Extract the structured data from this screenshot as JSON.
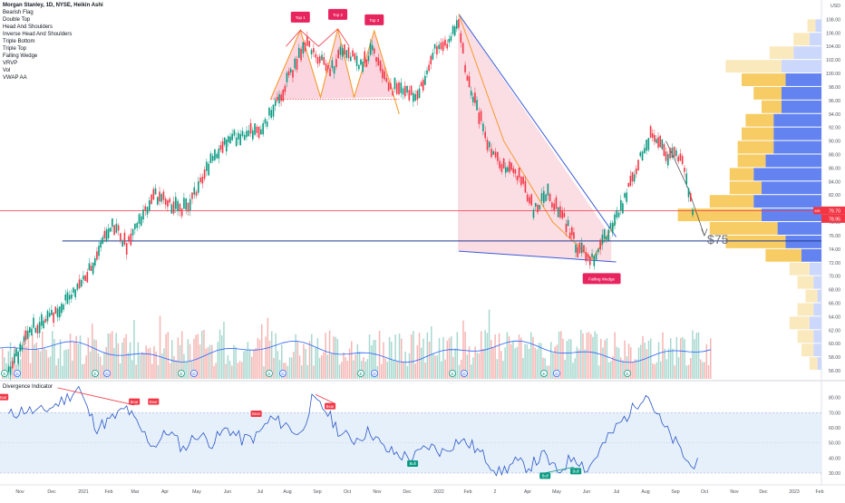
{
  "chart_data": {
    "type": "line",
    "title": "Morgan Stanley, 1D, NYSE, Heikin Ashi",
    "overlays": [
      "Bearish Flag",
      "Double Top",
      "Head And Shoulders",
      "Inverse Head And Shoulders",
      "Triple Bottom",
      "Triple Top",
      "Falling Wedge",
      "VRVP",
      "Vol",
      "VWAP AA"
    ],
    "currency": "USD",
    "price_axis": {
      "ticks": [
        "108.00",
        "106.00",
        "104.00",
        "102.00",
        "100.00",
        "98.00",
        "96.00",
        "94.00",
        "92.00",
        "90.00",
        "88.00",
        "86.00",
        "84.00",
        "82.00",
        "80.00",
        "78.00",
        "76.00",
        "74.00",
        "72.00",
        "70.00",
        "68.00",
        "66.00",
        "64.00",
        "62.00",
        "60.00",
        "58.00",
        "56.00"
      ],
      "range": [
        54.8,
        110.6
      ]
    },
    "time_axis": [
      "Nov",
      "Dec",
      "2021",
      "Feb",
      "Mar",
      "Apr",
      "May",
      "Jun",
      "Jul",
      "Aug",
      "Sep",
      "Oct",
      "Nov",
      "Dec",
      "2022",
      "Feb",
      "2",
      "Apr",
      "May",
      "Jun",
      "Jul",
      "Aug",
      "Sep",
      "Oct",
      "Nov",
      "Dec",
      "2023",
      "Feb"
    ],
    "price_series": {
      "name": "MS",
      "x": [
        "2020-10-20",
        "2020-11-15",
        "2020-12-10",
        "2021-01-10",
        "2021-02-05",
        "2021-02-20",
        "2021-03-05",
        "2021-03-20",
        "2021-04-10",
        "2021-04-25",
        "2021-05-10",
        "2021-05-25",
        "2021-06-10",
        "2021-06-25",
        "2021-07-10",
        "2021-07-25",
        "2021-08-10",
        "2021-08-25",
        "2021-09-05",
        "2021-09-20",
        "2021-10-05",
        "2021-10-20",
        "2021-11-05",
        "2021-11-20",
        "2021-12-05",
        "2021-12-20",
        "2022-01-05",
        "2022-01-20",
        "2022-02-01",
        "2022-02-10",
        "2022-02-20",
        "2022-03-05",
        "2022-03-20",
        "2022-04-05",
        "2022-04-20",
        "2022-05-05",
        "2022-05-20",
        "2022-06-05",
        "2022-06-20",
        "2022-07-05",
        "2022-07-20",
        "2022-08-05",
        "2022-08-20",
        "2022-09-05",
        "2022-09-20",
        "2022-10-05"
      ],
      "values": [
        56.3,
        62.5,
        65,
        70,
        78,
        74.5,
        78,
        82,
        80.5,
        79.8,
        85,
        88,
        90.5,
        91,
        92,
        95,
        100,
        104.5,
        103,
        100,
        104,
        101,
        103.5,
        98,
        97.5,
        96.5,
        103,
        104.5,
        107.5,
        99,
        95,
        89,
        86,
        85,
        80,
        82,
        79,
        74,
        72.5,
        76,
        80,
        86,
        91,
        88,
        87.8,
        78.5
      ]
    },
    "current_price": {
      "label": "MS",
      "value": "79.70",
      "secondary": "78.95"
    },
    "support_line": 75.2,
    "resistance_line": 79.7,
    "target_annotation": "$75",
    "pattern_labels": [
      "Top 1",
      "Top 2",
      "Top 3",
      "Falling Wedge"
    ],
    "volume_profile": {
      "bins": [
        107,
        105,
        103,
        101,
        99,
        97,
        95,
        93,
        91,
        89,
        87,
        85,
        83,
        81,
        79,
        77,
        75,
        73,
        71,
        69,
        67,
        65,
        63,
        61,
        59,
        57
      ],
      "up": [
        4,
        8,
        12,
        28,
        22,
        14,
        10,
        14,
        16,
        18,
        14,
        12,
        16,
        22,
        42,
        34,
        30,
        18,
        10,
        8,
        6,
        8,
        10,
        8,
        6,
        4
      ],
      "down": [
        3,
        6,
        14,
        20,
        18,
        20,
        20,
        24,
        24,
        24,
        28,
        34,
        30,
        34,
        30,
        22,
        18,
        10,
        6,
        4,
        2,
        4,
        6,
        4,
        4,
        2
      ]
    },
    "volume_markers": [
      "E",
      "D",
      "E",
      "D",
      "E",
      "D",
      "E",
      "D",
      "E",
      "D",
      "E",
      "D",
      "E",
      "D",
      "E"
    ],
    "indicator": {
      "name": "Divergence Indicator",
      "axis": [
        "80.00",
        "70.00",
        "60.00",
        "50.00",
        "40.00",
        "30.00"
      ],
      "range": [
        24,
        90
      ],
      "band": [
        30,
        70
      ],
      "midline": 50,
      "x": [
        "2020-10-20",
        "2020-11-05",
        "2020-11-20",
        "2020-12-05",
        "2020-12-20",
        "2021-01-01",
        "2021-01-10",
        "2021-01-20",
        "2021-02-05",
        "2021-02-20",
        "2021-03-05",
        "2021-03-20",
        "2021-04-05",
        "2021-04-20",
        "2021-05-05",
        "2021-05-20",
        "2021-06-05",
        "2021-06-20",
        "2021-07-05",
        "2021-07-20",
        "2021-08-05",
        "2021-08-20",
        "2021-09-01",
        "2021-09-15",
        "2021-10-01",
        "2021-10-15",
        "2021-11-01",
        "2021-11-15",
        "2021-12-01",
        "2021-12-15",
        "2022-01-01",
        "2022-01-15",
        "2022-02-01",
        "2022-02-15",
        "2022-03-01",
        "2022-03-15",
        "2022-04-01",
        "2022-04-15",
        "2022-05-01",
        "2022-05-15",
        "2022-06-01",
        "2022-06-15",
        "2022-07-01",
        "2022-07-15",
        "2022-08-01",
        "2022-08-15",
        "2022-09-01",
        "2022-09-15",
        "2022-10-01",
        "2022-10-08"
      ],
      "values": [
        68,
        72,
        70,
        74,
        80,
        87,
        72,
        60,
        66,
        73,
        60,
        48,
        58,
        46,
        56,
        50,
        60,
        52,
        54,
        66,
        62,
        55,
        78,
        72,
        56,
        52,
        58,
        46,
        42,
        40,
        48,
        44,
        52,
        48,
        40,
        30,
        37,
        34,
        42,
        30,
        42,
        32,
        48,
        60,
        72,
        84,
        62,
        50,
        34,
        40
      ],
      "signals": [
        "Bear",
        "Bear",
        "Bear",
        "Bear",
        "Bear",
        "Bull",
        "Bull",
        "Bull"
      ]
    }
  }
}
